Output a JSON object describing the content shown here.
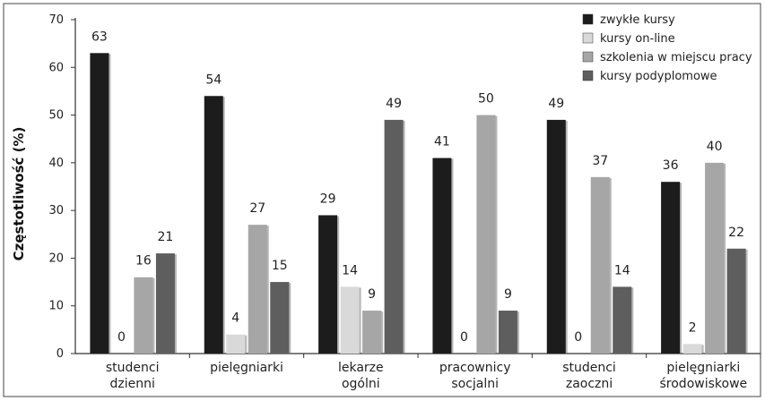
{
  "chart_data": {
    "type": "bar",
    "ylabel": "Częstotliwość (%)",
    "xlabel": "",
    "ylim": [
      0,
      70
    ],
    "yticks": [
      0,
      10,
      20,
      30,
      40,
      50,
      60,
      70
    ],
    "grid": false,
    "legend_position": "top-right",
    "categories": [
      [
        "studenci",
        "dzienni"
      ],
      [
        "pielęgniarki",
        ""
      ],
      [
        "lekarze",
        "ogólni"
      ],
      [
        "pracownicy",
        "socjalni"
      ],
      [
        "studenci",
        "zaoczni"
      ],
      [
        "pielęgniarki",
        "środowiskowe"
      ]
    ],
    "series": [
      {
        "name": "zwykłe kursy",
        "color": "#1c1c1c",
        "values": [
          63,
          54,
          29,
          41,
          49,
          36
        ]
      },
      {
        "name": "kursy on-line",
        "color": "#d9d9d9",
        "values": [
          0,
          4,
          14,
          0,
          0,
          2
        ]
      },
      {
        "name": "szkolenia w miejscu pracy",
        "color": "#a6a6a6",
        "values": [
          16,
          27,
          9,
          50,
          37,
          40
        ]
      },
      {
        "name": "kursy podyplomowe",
        "color": "#5e5e5e",
        "values": [
          21,
          15,
          49,
          9,
          14,
          22
        ]
      }
    ]
  }
}
